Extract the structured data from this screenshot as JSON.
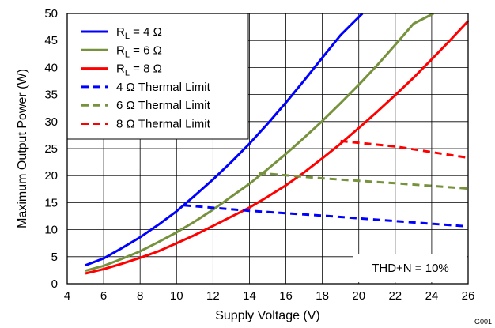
{
  "chart_data": {
    "type": "line",
    "xlabel": "Supply Voltage (V)",
    "ylabel": "Maximum Output Power (W)",
    "xlim": [
      4,
      26
    ],
    "ylim": [
      0,
      50
    ],
    "x_ticks": [
      4,
      6,
      8,
      10,
      12,
      14,
      16,
      18,
      20,
      22,
      24,
      26
    ],
    "y_ticks": [
      0,
      5,
      10,
      15,
      20,
      25,
      30,
      35,
      40,
      45,
      50
    ],
    "grid": true,
    "legend_position": "top-left",
    "annotation": "THD+N = 10%",
    "figure_id": "G001",
    "series": [
      {
        "name": "R_L = 4 Ω",
        "name_main": "R",
        "name_sub": "L",
        "name_rest": " = 4 Ω",
        "color": "#0000ff",
        "dash": "solid",
        "x": [
          5,
          6,
          7,
          8,
          9,
          10,
          11,
          12,
          13,
          14,
          15,
          16,
          17,
          18,
          19,
          20.2
        ],
        "y": [
          3.4,
          4.7,
          6.6,
          8.6,
          10.9,
          13.4,
          16.3,
          19.3,
          22.5,
          25.9,
          29.6,
          33.5,
          37.6,
          41.8,
          46.0,
          50.0
        ]
      },
      {
        "name": "R_L = 6 Ω",
        "name_main": "R",
        "name_sub": "L",
        "name_rest": " = 6 Ω",
        "color": "#76923c",
        "dash": "solid",
        "x": [
          5,
          6,
          7,
          8,
          9,
          10,
          11,
          12,
          13,
          14,
          15,
          16,
          17,
          18,
          19,
          20,
          21,
          22,
          23,
          24.1
        ],
        "y": [
          2.4,
          3.3,
          4.6,
          6.0,
          7.7,
          9.5,
          11.5,
          13.7,
          16.1,
          18.5,
          21.2,
          24.0,
          27.0,
          30.1,
          33.4,
          36.8,
          40.4,
          44.2,
          48.1,
          50.0
        ]
      },
      {
        "name": "R_L = 8 Ω",
        "name_main": "R",
        "name_sub": "L",
        "name_rest": " = 8 Ω",
        "color": "#ff0000",
        "dash": "solid",
        "x": [
          5,
          6,
          7,
          8,
          9,
          10,
          11,
          12,
          13,
          14,
          15,
          16,
          17,
          18,
          19,
          20,
          21,
          22,
          23,
          24,
          25,
          26
        ],
        "y": [
          1.9,
          2.7,
          3.7,
          4.8,
          6.0,
          7.5,
          9.0,
          10.7,
          12.4,
          14.1,
          16.1,
          18.2,
          20.6,
          23.2,
          25.9,
          28.8,
          31.8,
          34.9,
          38.1,
          41.5,
          45.0,
          48.6
        ]
      },
      {
        "name": "4 Ω Thermal Limit",
        "color": "#0000ff",
        "dash": "dashed",
        "x": [
          10.4,
          14,
          18,
          22,
          26
        ],
        "y": [
          14.5,
          13.5,
          12.6,
          11.6,
          10.6
        ]
      },
      {
        "name": "6 Ω Thermal Limit",
        "color": "#76923c",
        "dash": "dashed",
        "x": [
          14.5,
          18,
          22,
          26
        ],
        "y": [
          20.5,
          19.5,
          18.6,
          17.6
        ]
      },
      {
        "name": "8 Ω Thermal Limit",
        "color": "#ff0000",
        "dash": "dashed",
        "x": [
          19,
          22,
          26
        ],
        "y": [
          26.4,
          25.4,
          23.3
        ]
      }
    ]
  }
}
